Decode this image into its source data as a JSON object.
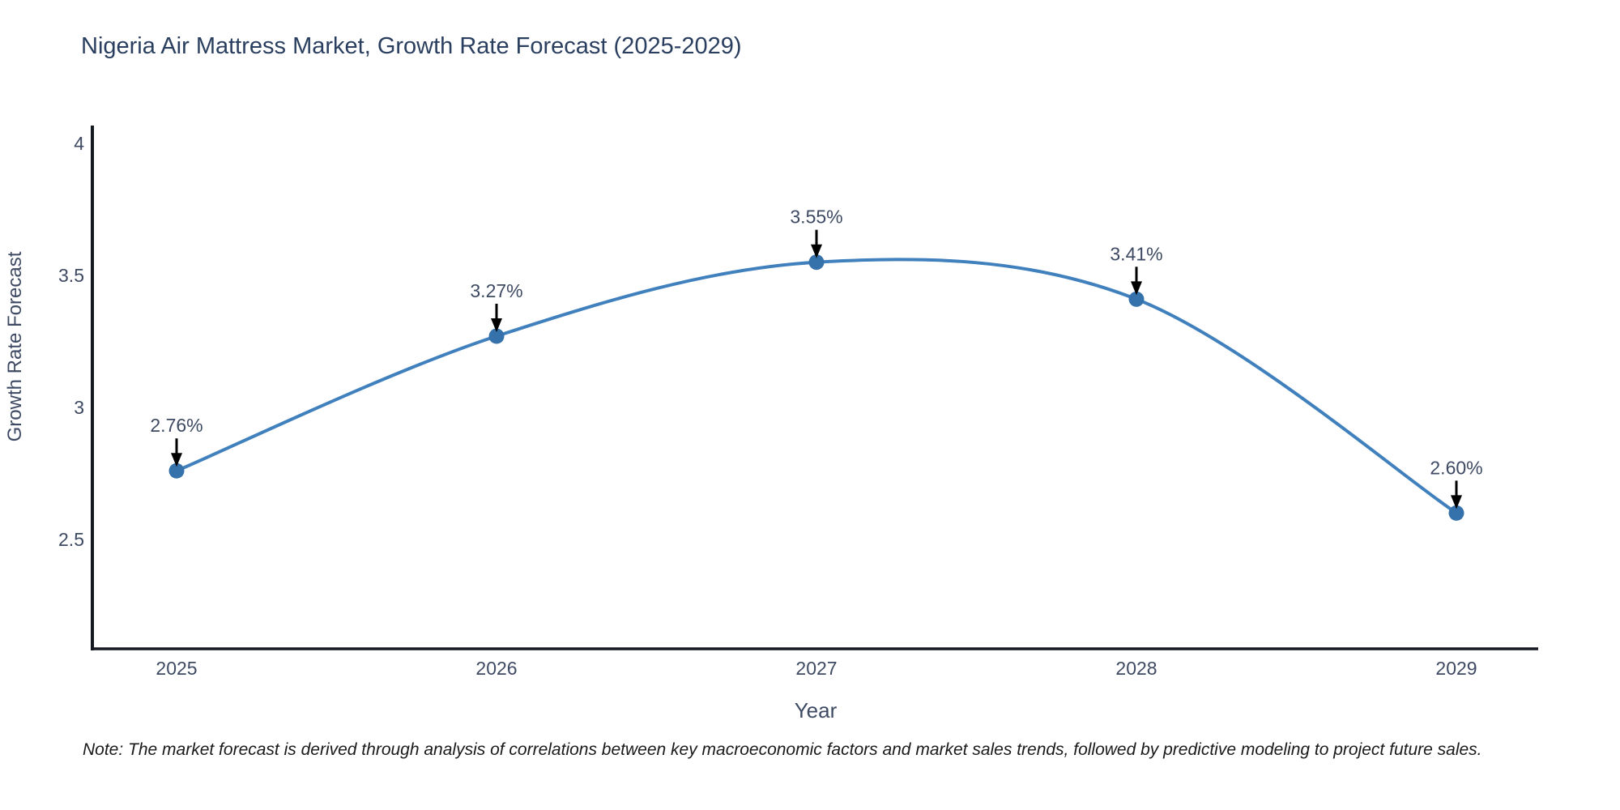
{
  "page": {
    "background": "#ffffff"
  },
  "chart_data": {
    "type": "line",
    "title": "Nigeria Air Mattress Market, Growth Rate Forecast (2025-2029)",
    "xlabel": "Year",
    "ylabel": "Growth Rate Forecast",
    "categories": [
      "2025",
      "2026",
      "2027",
      "2028",
      "2029"
    ],
    "series": [
      {
        "name": "Growth Rate Forecast",
        "values": [
          2.76,
          3.27,
          3.55,
          3.41,
          2.6
        ],
        "point_labels": [
          "2.76%",
          "3.27%",
          "3.55%",
          "3.41%",
          "2.60%"
        ]
      }
    ],
    "line_shape": "spline",
    "markers": true,
    "annotations_arrows": true,
    "grid": false,
    "legend_position": "none",
    "yticks": {
      "labels": [
        "4",
        "3.5",
        "3",
        "2.5"
      ],
      "values": [
        4,
        3.5,
        3,
        2.5
      ]
    },
    "ylim": [
      2.09,
      4.07
    ],
    "colors": {
      "line": "#4080bd",
      "marker": "#3572ab",
      "axis_line": "#14181f",
      "tick_text": "#3e4a63",
      "annotation_text": "#3e4a63",
      "annotation_arrow": "#000000",
      "title": "#2a3f5f",
      "note": "#1a1a1a"
    }
  },
  "note": "Note: The market forecast is derived through analysis of correlations between key macroeconomic factors and market sales trends, followed by predictive modeling to project future sales."
}
